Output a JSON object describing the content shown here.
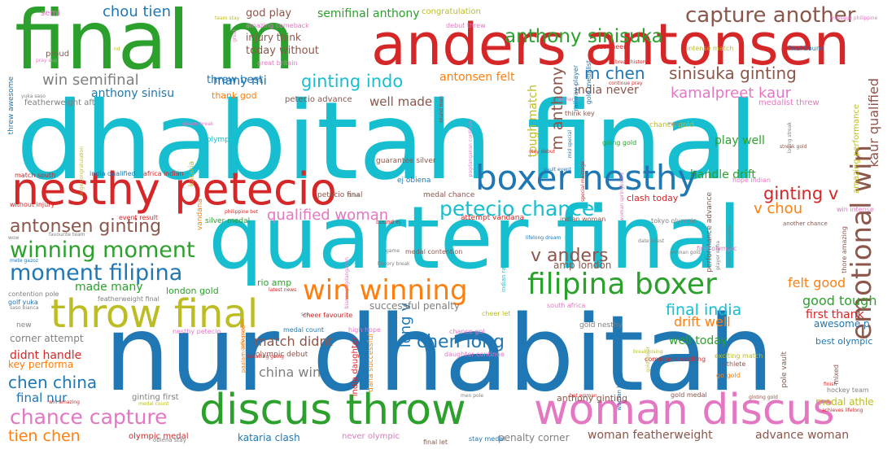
{
  "palette": {
    "green": "#2ca02c",
    "red": "#d62728",
    "cyan": "#17becf",
    "blue": "#1f77b4",
    "olive": "#bcbd22",
    "pink": "#e377c2",
    "brown": "#8c564b",
    "orange": "#ff7f0e",
    "purple": "#9467bd",
    "gray": "#7f7f7f"
  },
  "words": [
    {
      "text": "dhabitah final",
      "color": "cyan",
      "weight": 100
    },
    {
      "text": "nur dhabitah",
      "color": "blue",
      "weight": 98
    },
    {
      "text": "quarter final",
      "color": "cyan",
      "weight": 80
    },
    {
      "text": "final m",
      "color": "green",
      "weight": 78
    },
    {
      "text": "anders antonsen",
      "color": "red",
      "weight": 60
    },
    {
      "text": "nesthy petecio",
      "color": "red",
      "weight": 48
    },
    {
      "text": "discus throw",
      "color": "green",
      "weight": 46
    },
    {
      "text": "woman discus",
      "color": "pink",
      "weight": 46
    },
    {
      "text": "throw final",
      "color": "olive",
      "weight": 42
    },
    {
      "text": "boxer nesthy",
      "color": "blue",
      "weight": 38
    },
    {
      "text": "filipina boxer",
      "color": "green",
      "weight": 33
    },
    {
      "text": "emotional win",
      "color": "brown",
      "weight": 34
    },
    {
      "text": "win winning",
      "color": "orange",
      "weight": 30
    },
    {
      "text": "capture another",
      "color": "brown",
      "weight": 25
    },
    {
      "text": "moment filipina",
      "color": "blue",
      "weight": 24
    },
    {
      "text": "winning moment",
      "color": "green",
      "weight": 24
    },
    {
      "text": "chance capture",
      "color": "pink",
      "weight": 22
    },
    {
      "text": "petecio chance",
      "color": "cyan",
      "weight": 22
    },
    {
      "text": "anthony sinisuka",
      "color": "green",
      "weight": 20
    },
    {
      "text": "antonsen ginting",
      "color": "brown",
      "weight": 20
    },
    {
      "text": "chen long",
      "color": "blue",
      "weight": 19
    },
    {
      "text": "v anders",
      "color": "brown",
      "weight": 19
    },
    {
      "text": "ginting indo",
      "color": "cyan",
      "weight": 18
    },
    {
      "text": "ginting v",
      "color": "red",
      "weight": 18
    },
    {
      "text": "chen china",
      "color": "blue",
      "weight": 17
    },
    {
      "text": "sinisuka ginting",
      "color": "brown",
      "weight": 17
    },
    {
      "text": "m chen",
      "color": "blue",
      "weight": 17
    },
    {
      "text": "final india",
      "color": "cyan",
      "weight": 16
    },
    {
      "text": "qualified woman",
      "color": "pink",
      "weight": 16
    },
    {
      "text": "kamalpreet kaur",
      "color": "pink",
      "weight": 16
    },
    {
      "text": "tien chen",
      "color": "orange",
      "weight": 16
    },
    {
      "text": "m anthony",
      "color": "brown",
      "weight": 16
    },
    {
      "text": "v chou",
      "color": "orange",
      "weight": 15
    },
    {
      "text": "chou tien",
      "color": "blue",
      "weight": 15
    },
    {
      "text": "long v",
      "color": "blue",
      "weight": 15
    },
    {
      "text": "win semifinal",
      "color": "gray",
      "weight": 15
    },
    {
      "text": "kaur qualified",
      "color": "brown",
      "weight": 15
    },
    {
      "text": "china win",
      "color": "gray",
      "weight": 14
    },
    {
      "text": "drift well",
      "color": "orange",
      "weight": 14
    },
    {
      "text": "felt good",
      "color": "orange",
      "weight": 14
    },
    {
      "text": "good tough",
      "color": "green",
      "weight": 14
    },
    {
      "text": "match didnt",
      "color": "brown",
      "weight": 14
    },
    {
      "text": "woman featherweight",
      "color": "brown",
      "weight": 13
    },
    {
      "text": "advance woman",
      "color": "brown",
      "weight": 13
    },
    {
      "text": "final nur",
      "color": "blue",
      "weight": 13
    },
    {
      "text": "handle drift",
      "color": "green",
      "weight": 13
    },
    {
      "text": "well made",
      "color": "brown",
      "weight": 13
    },
    {
      "text": "many mi",
      "color": "blue",
      "weight": 13
    },
    {
      "text": "semifinal anthony",
      "color": "green",
      "weight": 13
    },
    {
      "text": "first thank",
      "color": "red",
      "weight": 13
    },
    {
      "text": "didnt handle",
      "color": "red",
      "weight": 13
    },
    {
      "text": "made many",
      "color": "green",
      "weight": 13
    },
    {
      "text": "tough match",
      "color": "olive",
      "weight": 12
    },
    {
      "text": "antonsen felt",
      "color": "orange",
      "weight": 12
    },
    {
      "text": "anthony sinisu",
      "color": "blue",
      "weight": 12
    },
    {
      "text": "india never",
      "color": "brown",
      "weight": 12
    },
    {
      "text": "well today",
      "color": "green",
      "weight": 12
    },
    {
      "text": "play well",
      "color": "green",
      "weight": 12
    },
    {
      "text": "threw best",
      "color": "blue",
      "weight": 12
    },
    {
      "text": "god play",
      "color": "brown",
      "weight": 11
    },
    {
      "text": "today without",
      "color": "brown",
      "weight": 11
    },
    {
      "text": "injury think",
      "color": "brown",
      "weight": 11
    },
    {
      "text": "amp london",
      "color": "brown",
      "weight": 11
    },
    {
      "text": "corner attempt",
      "color": "gray",
      "weight": 11
    },
    {
      "text": "key performa",
      "color": "orange",
      "weight": 11
    },
    {
      "text": "awesome p",
      "color": "blue",
      "weight": 11
    },
    {
      "text": "successful penalty",
      "color": "gray",
      "weight": 11
    },
    {
      "text": "medal athle",
      "color": "olive",
      "weight": 11
    },
    {
      "text": "kataria clash",
      "color": "blue",
      "weight": 11
    },
    {
      "text": "anthony ginting",
      "color": "brown",
      "weight": 11
    },
    {
      "text": "penalty corner",
      "color": "gray",
      "weight": 11
    },
    {
      "text": "london gold",
      "color": "green",
      "weight": 11
    },
    {
      "text": "rio amp",
      "color": "green",
      "weight": 10
    },
    {
      "text": "thank god",
      "color": "orange",
      "weight": 10
    },
    {
      "text": "ginting first",
      "color": "gray",
      "weight": 10
    },
    {
      "text": "best olympic",
      "color": "blue",
      "weight": 10
    },
    {
      "text": "clash today",
      "color": "red",
      "weight": 10
    },
    {
      "text": "petecio advance",
      "color": "brown",
      "weight": 9
    },
    {
      "text": "featherweight aft",
      "color": "gray",
      "weight": 9
    },
    {
      "text": "medalist threw",
      "color": "pink",
      "weight": 9
    },
    {
      "text": "amazing performance",
      "color": "olive",
      "weight": 9
    },
    {
      "text": "never olympic",
      "color": "pink",
      "weight": 9
    },
    {
      "text": "olympic medal",
      "color": "red",
      "weight": 9
    },
    {
      "text": "india daughter",
      "color": "red",
      "weight": 9
    },
    {
      "text": "dana successful",
      "color": "orange",
      "weight": 9
    },
    {
      "text": "congratulation",
      "color": "olive",
      "weight": 9
    },
    {
      "text": "semi",
      "color": "pink",
      "weight": 9
    },
    {
      "text": "proud",
      "color": "brown",
      "weight": 9
    },
    {
      "text": "guarantee silver",
      "color": "brown",
      "weight": 8
    },
    {
      "text": "olympic debut",
      "color": "brown",
      "weight": 8
    },
    {
      "text": "threw awesome",
      "color": "blue",
      "weight": 8
    },
    {
      "text": "gold nesthy",
      "color": "gray",
      "weight": 8
    },
    {
      "text": "chance gold",
      "color": "olive",
      "weight": 8
    },
    {
      "text": "kataria",
      "color": "olive",
      "weight": 8
    },
    {
      "text": "medal chance",
      "color": "brown",
      "weight": 8
    },
    {
      "text": "vandana",
      "color": "orange",
      "weight": 8
    },
    {
      "text": "petecio final",
      "color": "brown",
      "weight": 8
    },
    {
      "text": "ej obiena",
      "color": "blue",
      "weight": 8
    },
    {
      "text": "attempt vandana",
      "color": "red",
      "weight": 8
    },
    {
      "text": "performance advance",
      "color": "brown",
      "weight": 8
    },
    {
      "text": "pole vault",
      "color": "brown",
      "weight": 8
    },
    {
      "text": "olympic",
      "color": "cyan",
      "weight": 8
    },
    {
      "text": "silver medal",
      "color": "green",
      "weight": 8
    },
    {
      "text": "new",
      "color": "gray",
      "weight": 8
    },
    {
      "text": "nesthy petecio",
      "color": "pink",
      "weight": 7
    },
    {
      "text": "going gold",
      "color": "green",
      "weight": 7
    },
    {
      "text": "golf yuka",
      "color": "blue",
      "weight": 7
    },
    {
      "text": "medal count",
      "color": "blue",
      "weight": 7
    },
    {
      "text": "first olympic",
      "color": "pink",
      "weight": 7
    },
    {
      "text": "mixed",
      "color": "brown",
      "weight": 7
    },
    {
      "text": "go gold",
      "color": "orange",
      "weight": 7
    },
    {
      "text": "exciting match",
      "color": "olive",
      "weight": 7
    },
    {
      "text": "comeback exciting",
      "color": "red",
      "weight": 7
    },
    {
      "text": "athlete",
      "color": "brown",
      "weight": 7
    },
    {
      "text": "stay medal",
      "color": "blue",
      "weight": 7
    },
    {
      "text": "final let",
      "color": "brown",
      "weight": 7
    },
    {
      "text": "daughter continue",
      "color": "pink",
      "weight": 7
    },
    {
      "text": "chance gol",
      "color": "pink",
      "weight": 7
    },
    {
      "text": "medal contention",
      "color": "brown",
      "weight": 7
    },
    {
      "text": "cheer let",
      "color": "olive",
      "weight": 7
    },
    {
      "text": "south africa",
      "color": "pink",
      "weight": 7
    },
    {
      "text": "high hope",
      "color": "pink",
      "weight": 7
    },
    {
      "text": "cheer favourite",
      "color": "red",
      "weight": 7
    },
    {
      "text": "india qualified",
      "color": "blue",
      "weight": 7
    },
    {
      "text": "match south",
      "color": "red",
      "weight": 7
    },
    {
      "text": "africa indian",
      "color": "red",
      "weight": 7
    },
    {
      "text": "indian woman",
      "color": "brown",
      "weight": 7
    },
    {
      "text": "tokyo olympic",
      "color": "gray",
      "weight": 7
    },
    {
      "text": "win intense",
      "color": "pink",
      "weight": 7
    },
    {
      "text": "hope indian",
      "color": "pink",
      "weight": 7
    },
    {
      "text": "thore amazing",
      "color": "brown",
      "weight": 7
    },
    {
      "text": "gold medalist",
      "color": "blue",
      "weight": 7
    },
    {
      "text": "railway player",
      "color": "blue",
      "weight": 7
    },
    {
      "text": "think key",
      "color": "brown",
      "weight": 7
    },
    {
      "text": "final bound",
      "color": "blue",
      "weight": 7
    },
    {
      "text": "intense match",
      "color": "olive",
      "weight": 7
    },
    {
      "text": "great britain",
      "color": "pink",
      "weight": 7
    },
    {
      "text": "amazing comeback",
      "color": "pink",
      "weight": 7
    },
    {
      "text": "debut threw",
      "color": "pink",
      "weight": 7
    },
    {
      "text": "let cheer",
      "color": "red",
      "weight": 7
    },
    {
      "text": "gold medal",
      "color": "brown",
      "weight": 7
    },
    {
      "text": "hockey team",
      "color": "gray",
      "weight": 7
    },
    {
      "text": "medal count",
      "color": "olive",
      "weight": 6
    },
    {
      "text": "contention pole",
      "color": "gray",
      "weight": 7
    },
    {
      "text": "event result",
      "color": "red",
      "weight": 7
    },
    {
      "text": "obiena stay",
      "color": "gray",
      "weight": 7
    },
    {
      "text": "paalam advance",
      "color": "orange",
      "weight": 7
    },
    {
      "text": "carlo paalam",
      "color": "orange",
      "weight": 6
    },
    {
      "text": "breaking going",
      "color": "red",
      "weight": 6
    },
    {
      "text": "woman hockey",
      "color": "blue",
      "weight": 6
    },
    {
      "text": "break losing",
      "color": "olive",
      "weight": 6
    },
    {
      "text": "achieves lifelong",
      "color": "red",
      "weight": 6
    },
    {
      "text": "finish",
      "color": "red",
      "weight": 6
    },
    {
      "text": "bet woman",
      "color": "red",
      "weight": 6
    },
    {
      "text": "men pole",
      "color": "gray",
      "weight": 6
    },
    {
      "text": "ginting gold",
      "color": "brown",
      "weight": 6
    },
    {
      "text": "lifelong dream",
      "color": "blue",
      "weight": 6
    },
    {
      "text": "history break",
      "color": "gray",
      "weight": 6
    },
    {
      "text": "bound ej",
      "color": "red",
      "weight": 6
    },
    {
      "text": "indian railway",
      "color": "cyan",
      "weight": 6
    },
    {
      "text": "vault event",
      "color": "blue",
      "weight": 6
    },
    {
      "text": "esther qin",
      "color": "pink",
      "weight": 6
    },
    {
      "text": "message philippine",
      "color": "pink",
      "weight": 6
    },
    {
      "text": "team stay",
      "color": "olive",
      "weight": 6
    },
    {
      "text": "pray sup",
      "color": "pink",
      "weight": 6
    },
    {
      "text": "yuka saso",
      "color": "gray",
      "weight": 6
    },
    {
      "text": "huge congratulation",
      "color": "olive",
      "weight": 6
    },
    {
      "text": "without injury",
      "color": "red",
      "weight": 6
    },
    {
      "text": "favourite team",
      "color": "gray",
      "weight": 6
    },
    {
      "text": "wow",
      "color": "gray",
      "weight": 6
    },
    {
      "text": "mete gazoz",
      "color": "blue",
      "weight": 6
    },
    {
      "text": "featherweight final",
      "color": "gray",
      "weight": 6
    },
    {
      "text": "latest news",
      "color": "red",
      "weight": 6
    },
    {
      "text": "saso bianca",
      "color": "gray",
      "weight": 6
    },
    {
      "text": "win amazing",
      "color": "red",
      "weight": 6
    },
    {
      "text": "philippine bet",
      "color": "red",
      "weight": 6
    },
    {
      "text": "great",
      "color": "pink",
      "weight": 6
    },
    {
      "text": "round men",
      "color": "red",
      "weight": 6
    },
    {
      "text": "continue pray",
      "color": "red",
      "weight": 6
    },
    {
      "text": "dream break",
      "color": "pink",
      "weight": 6
    },
    {
      "text": "game",
      "color": "gray",
      "weight": 6
    },
    {
      "text": "see",
      "color": "gray",
      "weight": 6
    },
    {
      "text": "much",
      "color": "gray",
      "weight": 6
    },
    {
      "text": "time",
      "color": "gray",
      "weight": 6
    },
    {
      "text": "stay debut",
      "color": "red",
      "weight": 6
    },
    {
      "text": "date latest",
      "color": "gray",
      "weight": 6
    },
    {
      "text": "another chance",
      "color": "brown",
      "weight": 6
    },
    {
      "text": "woman gold",
      "color": "gray",
      "weight": 6
    },
    {
      "text": "streak gold",
      "color": "brown",
      "weight": 6
    },
    {
      "text": "losing streak",
      "color": "gray",
      "weight": 6
    },
    {
      "text": "woman springboard",
      "color": "pink",
      "weight": 6
    },
    {
      "text": "gold boxer",
      "color": "olive",
      "weight": 6
    },
    {
      "text": "player neha",
      "color": "gray",
      "weight": 6
    },
    {
      "text": "match guarantee",
      "color": "gray",
      "weight": 6
    },
    {
      "text": "special message",
      "color": "red",
      "weight": 6
    },
    {
      "text": "mid special",
      "color": "blue",
      "weight": 6
    },
    {
      "text": "bianca pagdanganan",
      "color": "pink",
      "weight": 6
    },
    {
      "text": "pagdanganan continue",
      "color": "pink",
      "weight": 6
    },
    {
      "text": "break history",
      "color": "red",
      "weight": 6
    },
    {
      "text": "nd",
      "color": "olive",
      "weight": 6
    }
  ]
}
